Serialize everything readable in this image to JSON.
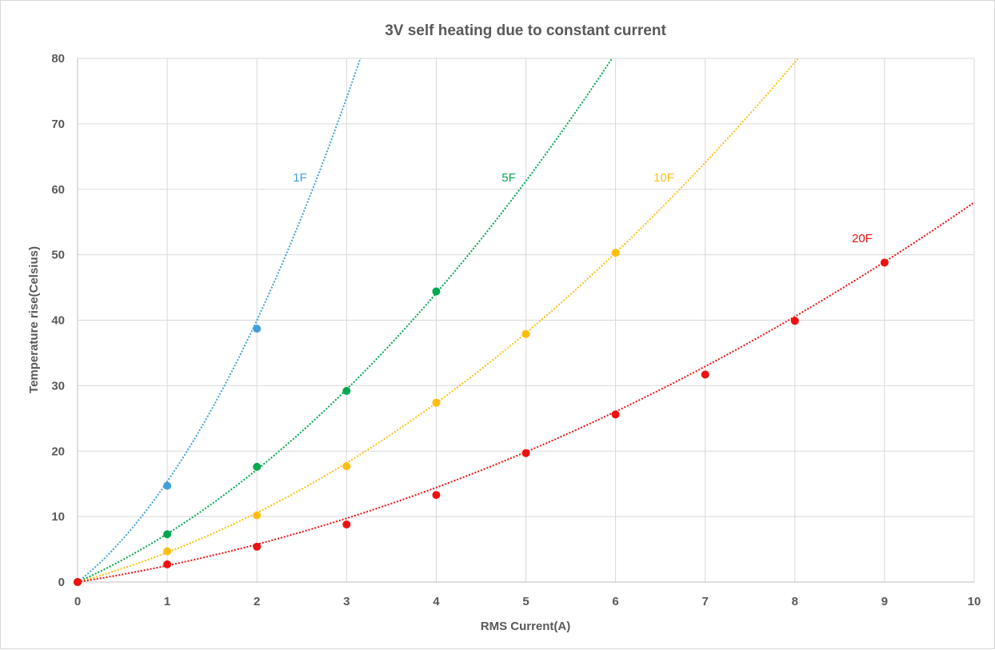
{
  "chart_data": {
    "type": "scatter",
    "title": "3V self heating due to constant current",
    "xlabel": "RMS Current(A)",
    "ylabel": "Temperature rise(Celsius)",
    "xlim": [
      0,
      10
    ],
    "ylim": [
      0,
      80
    ],
    "x_ticks": [
      "0",
      "1",
      "2",
      "3",
      "4",
      "5",
      "6",
      "7",
      "8",
      "9",
      "10"
    ],
    "y_ticks": [
      "0",
      "10",
      "20",
      "30",
      "40",
      "50",
      "60",
      "70",
      "80"
    ],
    "grid": true,
    "legend": "none",
    "trendline": "polynomial (dotted)",
    "series": [
      {
        "name": "1F",
        "color": "#41a0d8",
        "points": [
          [
            0,
            0
          ],
          [
            1,
            14.7
          ],
          [
            2,
            38.7
          ]
        ],
        "trend_coef": [
          0,
          10.7,
          4.65
        ]
      },
      {
        "name": "5F",
        "color": "#00a84f",
        "points": [
          [
            0,
            0
          ],
          [
            1,
            7.3
          ],
          [
            2,
            17.6
          ],
          [
            3,
            29.2
          ],
          [
            4,
            44.4
          ]
        ],
        "trend_coef": [
          0,
          6.15,
          1.22
        ]
      },
      {
        "name": "10F",
        "color": "#fdbe10",
        "points": [
          [
            0,
            0
          ],
          [
            1,
            4.7
          ],
          [
            2,
            10.2
          ],
          [
            3,
            17.7
          ],
          [
            4,
            27.4
          ],
          [
            5,
            37.9
          ],
          [
            6,
            50.3
          ]
        ],
        "trend_coef": [
          0,
          3.75,
          0.772
        ]
      },
      {
        "name": "20F",
        "color": "#ee1111",
        "points": [
          [
            0,
            0
          ],
          [
            1,
            2.7
          ],
          [
            2,
            5.4
          ],
          [
            3,
            8.8
          ],
          [
            4,
            13.3
          ],
          [
            5,
            19.7
          ],
          [
            6,
            25.6
          ],
          [
            7,
            31.7
          ],
          [
            8,
            39.9
          ],
          [
            9,
            48.8
          ]
        ],
        "trend_coef": [
          0,
          2.15,
          0.365
        ]
      }
    ]
  }
}
